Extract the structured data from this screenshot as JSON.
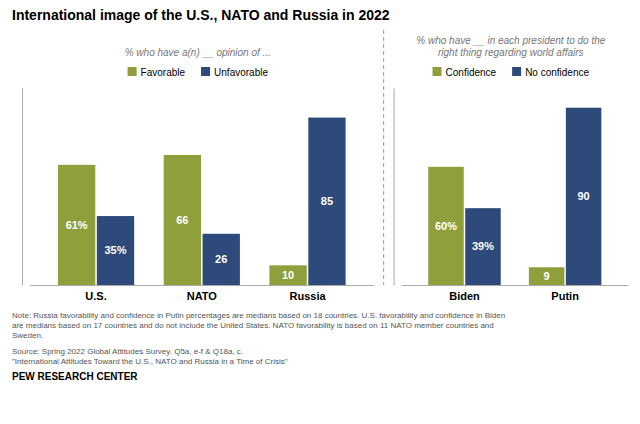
{
  "chart_data": [
    {
      "type": "bar",
      "title": "International image of the U.S., NATO and Russia in 2022",
      "subtitle": "% who have a(n) __ opinion of ...",
      "categories": [
        "U.S.",
        "NATO",
        "Russia"
      ],
      "series": [
        {
          "name": "Favorable",
          "color": "#8f9f3b",
          "values": [
            61,
            66,
            10
          ],
          "value_labels": [
            "61%",
            "66",
            "10"
          ]
        },
        {
          "name": "Unfavorable",
          "color": "#2d4a7a",
          "values": [
            35,
            26,
            85
          ],
          "value_labels": [
            "35%",
            "26",
            "85"
          ]
        }
      ],
      "ylim": [
        0,
        100
      ],
      "grid": false,
      "legend": "top",
      "data_labels": true,
      "tick_labels": "x",
      "annotations": [
        "Note: Russia favorability and confidence in Putin percentages are medians based on 18 countries. U.S. favorability and confidence in Biden\nare medians based on 17 countries and do not include the United States. NATO favorability is based on 11 NATO member countries and\nSweden.",
        "Source: Spring 2022 Global Attitudes Survey. Q5a, e-f & Q18a, c.\n\"International Attitudes Toward the U.S., NATO and Russia in a Time of Crisis\"",
        "PEW RESEARCH CENTER"
      ]
    },
    {
      "type": "bar",
      "subtitle": "% who have __ in each president to do the\nright thing regarding world affairs",
      "categories": [
        "Biden",
        "Putin"
      ],
      "series": [
        {
          "name": "Confidence",
          "color": "#8f9f3b",
          "values": [
            60,
            9
          ],
          "value_labels": [
            "60%",
            "9"
          ]
        },
        {
          "name": "No confidence",
          "color": "#2d4a7a",
          "values": [
            39,
            90
          ],
          "value_labels": [
            "39%",
            "90"
          ]
        }
      ],
      "ylim": [
        0,
        100
      ],
      "grid": false,
      "legend": "top",
      "data_labels": true,
      "tick_labels": "x"
    }
  ]
}
